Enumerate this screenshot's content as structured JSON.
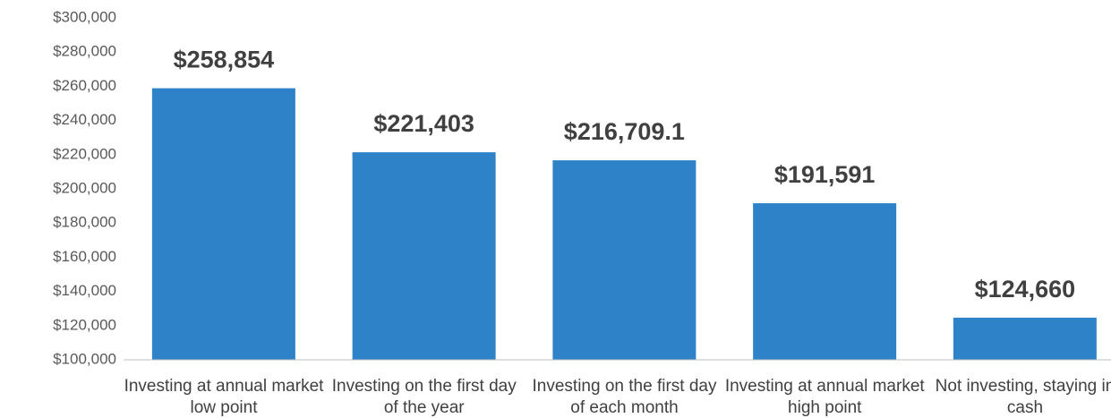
{
  "chart_data": {
    "type": "bar",
    "categories": [
      "Investing at annual market low point",
      "Investing on the first day of the year",
      "Investing on the first day of each month",
      "Investing at annual market high point",
      "Not investing, staying in cash"
    ],
    "values": [
      258854,
      221403,
      216709.1,
      191591,
      124660
    ],
    "value_labels": [
      "$258,854",
      "$221,403",
      "$216,709.1",
      "$191,591",
      "$124,660"
    ],
    "color": "#2e83c8",
    "ylim": [
      100000,
      300000
    ],
    "yticks": [
      {
        "value": 100000,
        "label": "$100,000"
      },
      {
        "value": 120000,
        "label": "$120,000"
      },
      {
        "value": 140000,
        "label": "$140,000"
      },
      {
        "value": 160000,
        "label": "$160,000"
      },
      {
        "value": 180000,
        "label": "$180,000"
      },
      {
        "value": 200000,
        "label": "$200,000"
      },
      {
        "value": 220000,
        "label": "$220,000"
      },
      {
        "value": 240000,
        "label": "$240,000"
      },
      {
        "value": 260000,
        "label": "$260,000"
      },
      {
        "value": 280000,
        "label": "$280,000"
      },
      {
        "value": 300000,
        "label": "$300,000"
      }
    ],
    "grid": false
  }
}
